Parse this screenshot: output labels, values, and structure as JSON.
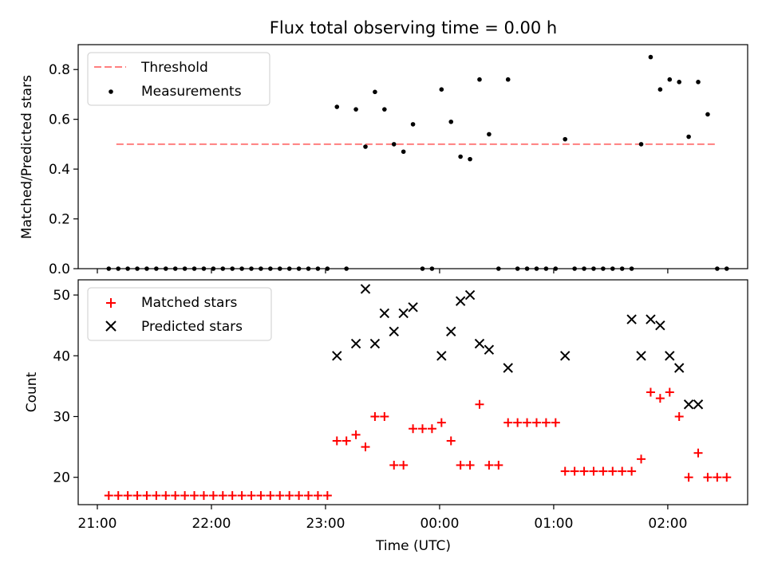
{
  "figure": {
    "title": "Flux total observing time = 0.00 h",
    "xlabel": "Time (UTC)"
  },
  "chart_data": [
    {
      "type": "scatter",
      "ylabel": "Matched/Predicted stars",
      "ylim": [
        0,
        0.9
      ],
      "yticks": [
        0.0,
        0.2,
        0.4,
        0.6,
        0.8
      ],
      "grid": false,
      "legend_location": "upper left",
      "threshold": {
        "name": "Threshold",
        "value": 0.5,
        "x_start": "21:10",
        "x_end": "02:25",
        "color": "#ff7f7f",
        "style": "dashed"
      },
      "series": [
        {
          "name": "Measurements",
          "color": "#000000",
          "marker": "dot",
          "x": [
            "21:06",
            "21:11",
            "21:16",
            "21:21",
            "21:26",
            "21:31",
            "21:36",
            "21:41",
            "21:46",
            "21:51",
            "21:56",
            "22:01",
            "22:06",
            "22:11",
            "22:16",
            "22:21",
            "22:26",
            "22:31",
            "22:36",
            "22:41",
            "22:46",
            "22:51",
            "22:56",
            "23:01",
            "23:06",
            "23:11",
            "23:16",
            "23:21",
            "23:26",
            "23:31",
            "23:36",
            "23:41",
            "23:46",
            "23:51",
            "23:56",
            "00:01",
            "00:06",
            "00:11",
            "00:16",
            "00:21",
            "00:26",
            "00:31",
            "00:36",
            "00:41",
            "00:46",
            "00:51",
            "00:56",
            "01:01",
            "01:06",
            "01:11",
            "01:16",
            "01:21",
            "01:26",
            "01:31",
            "01:36",
            "01:41",
            "01:46",
            "01:51",
            "01:56",
            "02:01",
            "02:06",
            "02:11",
            "02:16",
            "02:21",
            "02:26",
            "02:31"
          ],
          "y": [
            0.0,
            0.0,
            0.0,
            0.0,
            0.0,
            0.0,
            0.0,
            0.0,
            0.0,
            0.0,
            0.0,
            0.0,
            0.0,
            0.0,
            0.0,
            0.0,
            0.0,
            0.0,
            0.0,
            0.0,
            0.0,
            0.0,
            0.0,
            0.0,
            0.65,
            0.0,
            0.64,
            0.49,
            0.71,
            0.64,
            0.5,
            0.47,
            0.58,
            0.0,
            0.0,
            0.72,
            0.59,
            0.45,
            0.44,
            0.76,
            0.54,
            0.0,
            0.76,
            0.0,
            0.0,
            0.0,
            0.0,
            0.0,
            0.52,
            0.0,
            0.0,
            0.0,
            0.0,
            0.0,
            0.0,
            0.0,
            0.5,
            0.85,
            0.72,
            0.76,
            0.75,
            0.53,
            0.75,
            0.62,
            0.0,
            0.0
          ]
        }
      ]
    },
    {
      "type": "scatter",
      "ylabel": "Count",
      "ylim": [
        15.5,
        52.5
      ],
      "yticks": [
        20,
        30,
        40,
        50
      ],
      "grid": false,
      "legend_location": "upper left",
      "series": [
        {
          "name": "Matched stars",
          "color": "#ff0000",
          "marker": "plus",
          "x": [
            "21:06",
            "21:11",
            "21:16",
            "21:21",
            "21:26",
            "21:31",
            "21:36",
            "21:41",
            "21:46",
            "21:51",
            "21:56",
            "22:01",
            "22:06",
            "22:11",
            "22:16",
            "22:21",
            "22:26",
            "22:31",
            "22:36",
            "22:41",
            "22:46",
            "22:51",
            "22:56",
            "23:01",
            "23:06",
            "23:11",
            "23:16",
            "23:21",
            "23:26",
            "23:31",
            "23:36",
            "23:41",
            "23:46",
            "23:51",
            "23:56",
            "00:01",
            "00:06",
            "00:11",
            "00:16",
            "00:21",
            "00:26",
            "00:31",
            "00:36",
            "00:41",
            "00:46",
            "00:51",
            "00:56",
            "01:01",
            "01:06",
            "01:11",
            "01:16",
            "01:21",
            "01:26",
            "01:31",
            "01:36",
            "01:41",
            "01:46",
            "01:51",
            "01:56",
            "02:01",
            "02:06",
            "02:11",
            "02:16",
            "02:21",
            "02:26",
            "02:31"
          ],
          "y": [
            17,
            17,
            17,
            17,
            17,
            17,
            17,
            17,
            17,
            17,
            17,
            17,
            17,
            17,
            17,
            17,
            17,
            17,
            17,
            17,
            17,
            17,
            17,
            17,
            26,
            26,
            27,
            25,
            30,
            30,
            22,
            22,
            28,
            28,
            28,
            29,
            26,
            22,
            22,
            32,
            22,
            22,
            29,
            29,
            29,
            29,
            29,
            29,
            21,
            21,
            21,
            21,
            21,
            21,
            21,
            21,
            23,
            34,
            33,
            34,
            30,
            20,
            24,
            20,
            20,
            20
          ]
        },
        {
          "name": "Predicted stars",
          "color": "#000000",
          "marker": "x",
          "x": [
            "23:06",
            "23:16",
            "23:21",
            "23:26",
            "23:31",
            "23:36",
            "23:41",
            "23:46",
            "00:01",
            "00:06",
            "00:11",
            "00:16",
            "00:21",
            "00:26",
            "00:36",
            "01:06",
            "01:41",
            "01:46",
            "01:51",
            "01:56",
            "02:01",
            "02:06",
            "02:11",
            "02:16"
          ],
          "y": [
            40,
            42,
            51,
            42,
            47,
            44,
            47,
            48,
            40,
            44,
            49,
            50,
            42,
            41,
            38,
            40,
            46,
            40,
            46,
            45,
            40,
            38,
            32,
            32
          ]
        }
      ]
    }
  ],
  "x_axis": {
    "start": "21:00",
    "ticks": [
      "21:00",
      "22:00",
      "23:00",
      "00:00",
      "01:00",
      "02:00"
    ]
  }
}
